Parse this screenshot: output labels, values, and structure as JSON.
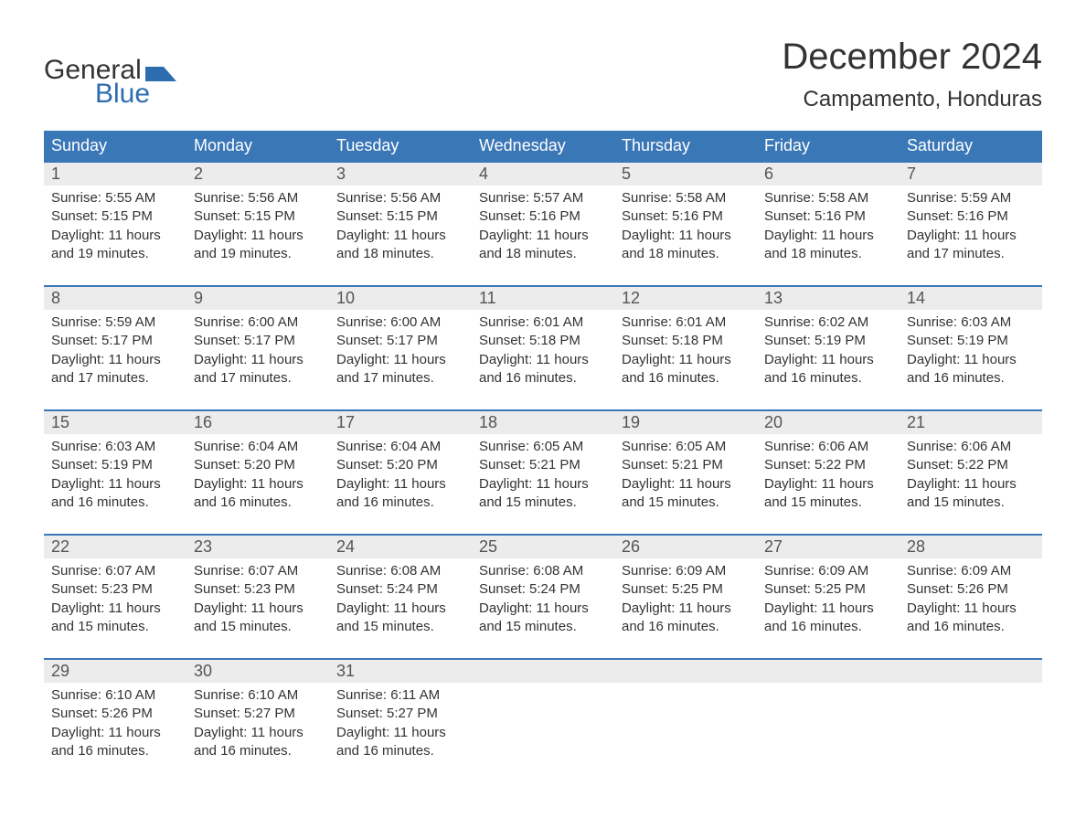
{
  "brand": {
    "word1": "General",
    "word2": "Blue",
    "text_color": "#333333",
    "accent_color": "#2e6cb0"
  },
  "title": "December 2024",
  "location": "Campamento, Honduras",
  "colors": {
    "header_bg": "#3a77b7",
    "header_text": "#ffffff",
    "daynum_bg": "#ececec",
    "daynum_text": "#555555",
    "body_text": "#333333",
    "week_divider": "#3a77b7",
    "page_bg": "#ffffff"
  },
  "weekdays": [
    "Sunday",
    "Monday",
    "Tuesday",
    "Wednesday",
    "Thursday",
    "Friday",
    "Saturday"
  ],
  "weeks": [
    [
      {
        "n": "1",
        "sr": "Sunrise: 5:55 AM",
        "ss": "Sunset: 5:15 PM",
        "dl": "Daylight: 11 hours and 19 minutes."
      },
      {
        "n": "2",
        "sr": "Sunrise: 5:56 AM",
        "ss": "Sunset: 5:15 PM",
        "dl": "Daylight: 11 hours and 19 minutes."
      },
      {
        "n": "3",
        "sr": "Sunrise: 5:56 AM",
        "ss": "Sunset: 5:15 PM",
        "dl": "Daylight: 11 hours and 18 minutes."
      },
      {
        "n": "4",
        "sr": "Sunrise: 5:57 AM",
        "ss": "Sunset: 5:16 PM",
        "dl": "Daylight: 11 hours and 18 minutes."
      },
      {
        "n": "5",
        "sr": "Sunrise: 5:58 AM",
        "ss": "Sunset: 5:16 PM",
        "dl": "Daylight: 11 hours and 18 minutes."
      },
      {
        "n": "6",
        "sr": "Sunrise: 5:58 AM",
        "ss": "Sunset: 5:16 PM",
        "dl": "Daylight: 11 hours and 18 minutes."
      },
      {
        "n": "7",
        "sr": "Sunrise: 5:59 AM",
        "ss": "Sunset: 5:16 PM",
        "dl": "Daylight: 11 hours and 17 minutes."
      }
    ],
    [
      {
        "n": "8",
        "sr": "Sunrise: 5:59 AM",
        "ss": "Sunset: 5:17 PM",
        "dl": "Daylight: 11 hours and 17 minutes."
      },
      {
        "n": "9",
        "sr": "Sunrise: 6:00 AM",
        "ss": "Sunset: 5:17 PM",
        "dl": "Daylight: 11 hours and 17 minutes."
      },
      {
        "n": "10",
        "sr": "Sunrise: 6:00 AM",
        "ss": "Sunset: 5:17 PM",
        "dl": "Daylight: 11 hours and 17 minutes."
      },
      {
        "n": "11",
        "sr": "Sunrise: 6:01 AM",
        "ss": "Sunset: 5:18 PM",
        "dl": "Daylight: 11 hours and 16 minutes."
      },
      {
        "n": "12",
        "sr": "Sunrise: 6:01 AM",
        "ss": "Sunset: 5:18 PM",
        "dl": "Daylight: 11 hours and 16 minutes."
      },
      {
        "n": "13",
        "sr": "Sunrise: 6:02 AM",
        "ss": "Sunset: 5:19 PM",
        "dl": "Daylight: 11 hours and 16 minutes."
      },
      {
        "n": "14",
        "sr": "Sunrise: 6:03 AM",
        "ss": "Sunset: 5:19 PM",
        "dl": "Daylight: 11 hours and 16 minutes."
      }
    ],
    [
      {
        "n": "15",
        "sr": "Sunrise: 6:03 AM",
        "ss": "Sunset: 5:19 PM",
        "dl": "Daylight: 11 hours and 16 minutes."
      },
      {
        "n": "16",
        "sr": "Sunrise: 6:04 AM",
        "ss": "Sunset: 5:20 PM",
        "dl": "Daylight: 11 hours and 16 minutes."
      },
      {
        "n": "17",
        "sr": "Sunrise: 6:04 AM",
        "ss": "Sunset: 5:20 PM",
        "dl": "Daylight: 11 hours and 16 minutes."
      },
      {
        "n": "18",
        "sr": "Sunrise: 6:05 AM",
        "ss": "Sunset: 5:21 PM",
        "dl": "Daylight: 11 hours and 15 minutes."
      },
      {
        "n": "19",
        "sr": "Sunrise: 6:05 AM",
        "ss": "Sunset: 5:21 PM",
        "dl": "Daylight: 11 hours and 15 minutes."
      },
      {
        "n": "20",
        "sr": "Sunrise: 6:06 AM",
        "ss": "Sunset: 5:22 PM",
        "dl": "Daylight: 11 hours and 15 minutes."
      },
      {
        "n": "21",
        "sr": "Sunrise: 6:06 AM",
        "ss": "Sunset: 5:22 PM",
        "dl": "Daylight: 11 hours and 15 minutes."
      }
    ],
    [
      {
        "n": "22",
        "sr": "Sunrise: 6:07 AM",
        "ss": "Sunset: 5:23 PM",
        "dl": "Daylight: 11 hours and 15 minutes."
      },
      {
        "n": "23",
        "sr": "Sunrise: 6:07 AM",
        "ss": "Sunset: 5:23 PM",
        "dl": "Daylight: 11 hours and 15 minutes."
      },
      {
        "n": "24",
        "sr": "Sunrise: 6:08 AM",
        "ss": "Sunset: 5:24 PM",
        "dl": "Daylight: 11 hours and 15 minutes."
      },
      {
        "n": "25",
        "sr": "Sunrise: 6:08 AM",
        "ss": "Sunset: 5:24 PM",
        "dl": "Daylight: 11 hours and 15 minutes."
      },
      {
        "n": "26",
        "sr": "Sunrise: 6:09 AM",
        "ss": "Sunset: 5:25 PM",
        "dl": "Daylight: 11 hours and 16 minutes."
      },
      {
        "n": "27",
        "sr": "Sunrise: 6:09 AM",
        "ss": "Sunset: 5:25 PM",
        "dl": "Daylight: 11 hours and 16 minutes."
      },
      {
        "n": "28",
        "sr": "Sunrise: 6:09 AM",
        "ss": "Sunset: 5:26 PM",
        "dl": "Daylight: 11 hours and 16 minutes."
      }
    ],
    [
      {
        "n": "29",
        "sr": "Sunrise: 6:10 AM",
        "ss": "Sunset: 5:26 PM",
        "dl": "Daylight: 11 hours and 16 minutes."
      },
      {
        "n": "30",
        "sr": "Sunrise: 6:10 AM",
        "ss": "Sunset: 5:27 PM",
        "dl": "Daylight: 11 hours and 16 minutes."
      },
      {
        "n": "31",
        "sr": "Sunrise: 6:11 AM",
        "ss": "Sunset: 5:27 PM",
        "dl": "Daylight: 11 hours and 16 minutes."
      },
      null,
      null,
      null,
      null
    ]
  ]
}
